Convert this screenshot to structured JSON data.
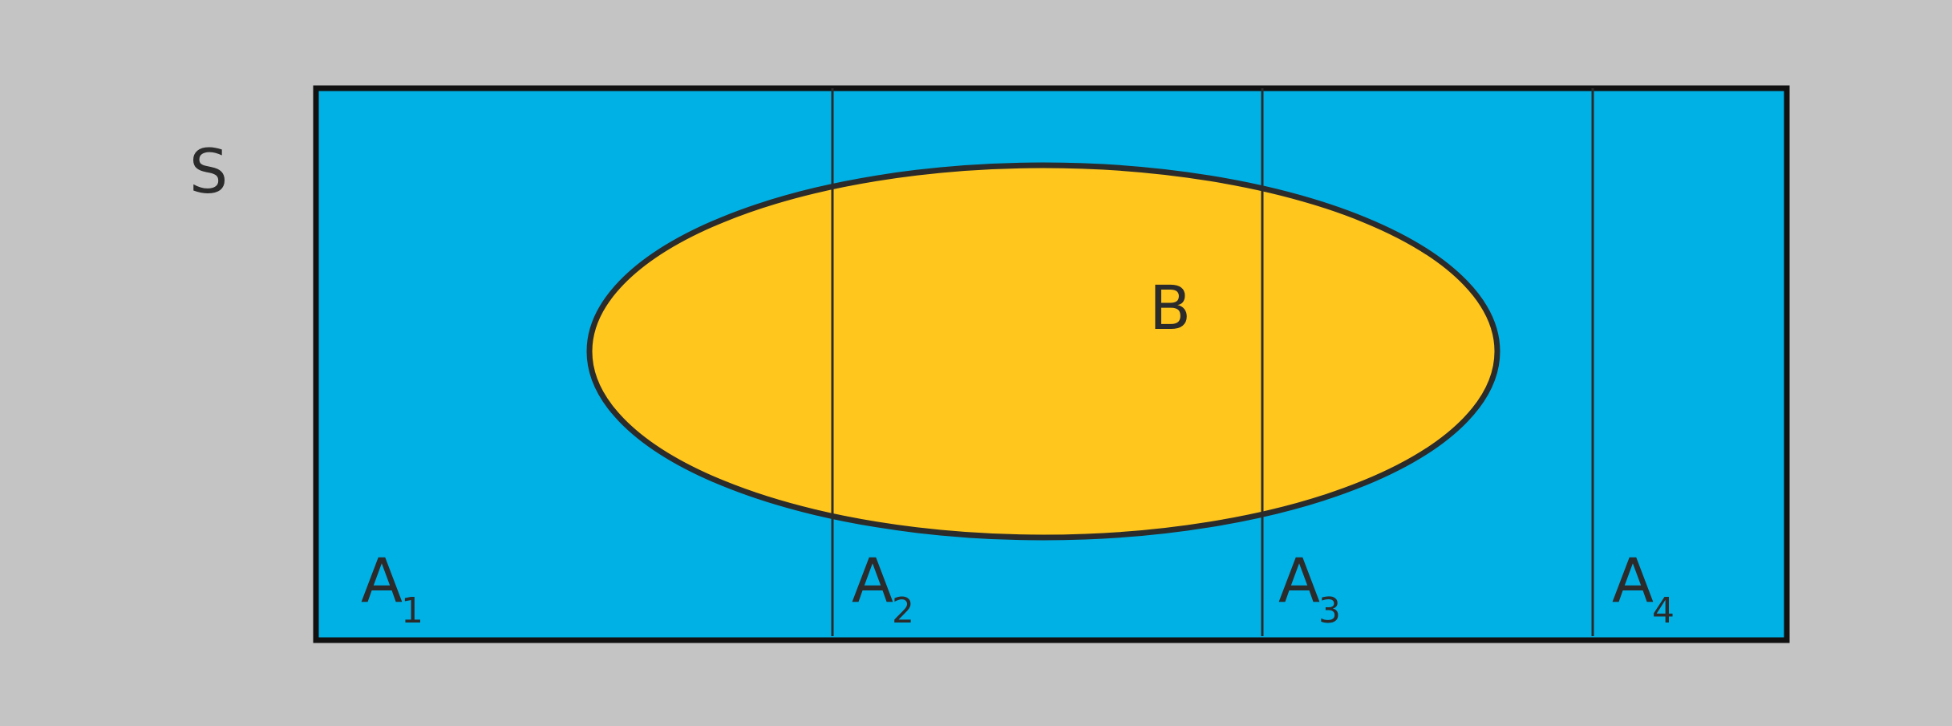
{
  "diagram": {
    "sample_space_label": "S",
    "event_b_label": "B",
    "partitions": [
      {
        "letter": "A",
        "index": "1"
      },
      {
        "letter": "A",
        "index": "2"
      },
      {
        "letter": "A",
        "index": "3"
      },
      {
        "letter": "A",
        "index": "4"
      }
    ]
  },
  "colors": {
    "background": "#c4c4c4",
    "sample_space_fill": "#00b1e6",
    "event_b_fill": "#ffc61e",
    "stroke": "#2b2b2b"
  }
}
